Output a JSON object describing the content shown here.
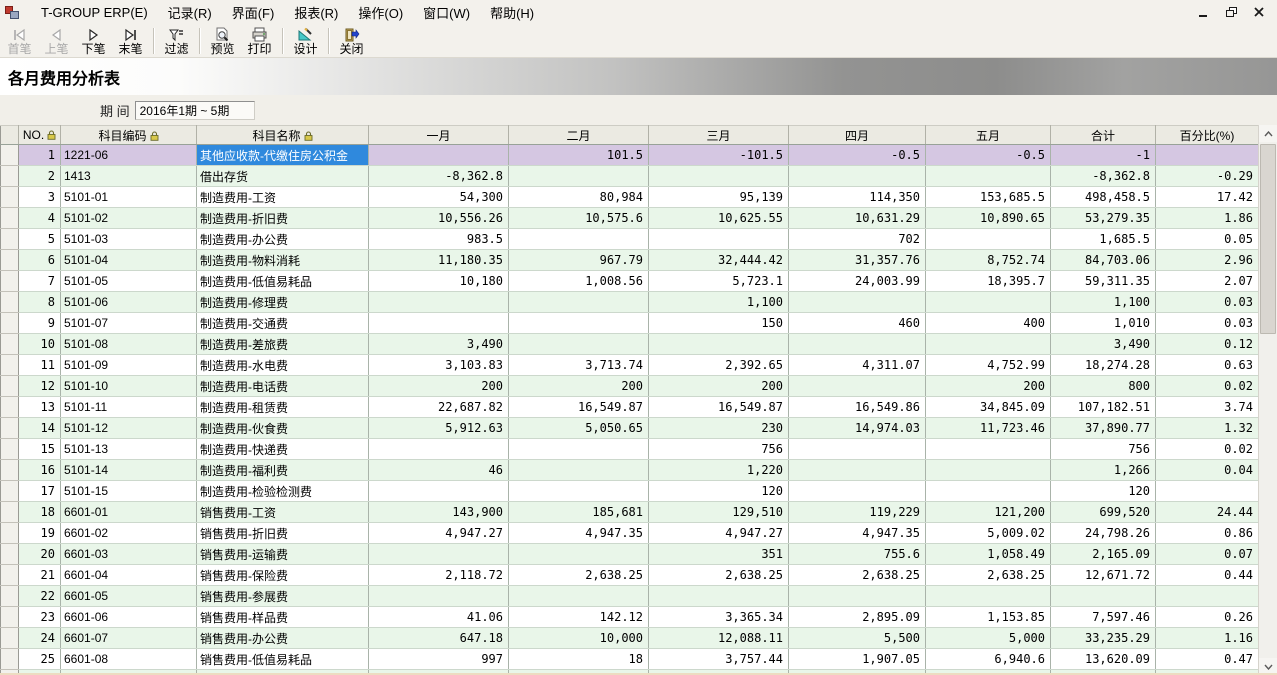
{
  "menubar": {
    "items": [
      "T-GROUP ERP(E)",
      "记录(R)",
      "界面(F)",
      "报表(R)",
      "操作(O)",
      "窗口(W)",
      "帮助(H)"
    ]
  },
  "toolbar": {
    "buttons": [
      {
        "label": "首笔",
        "icon": "first-record-icon",
        "enabled": false
      },
      {
        "label": "上笔",
        "icon": "prev-record-icon",
        "enabled": false
      },
      {
        "label": "下笔",
        "icon": "next-record-icon",
        "enabled": true
      },
      {
        "label": "末笔",
        "icon": "last-record-icon",
        "enabled": true
      },
      {
        "label": "过滤",
        "icon": "filter-icon",
        "enabled": true
      },
      {
        "label": "预览",
        "icon": "preview-icon",
        "enabled": true
      },
      {
        "label": "打印",
        "icon": "print-icon",
        "enabled": true
      },
      {
        "label": "设计",
        "icon": "design-icon",
        "enabled": true
      },
      {
        "label": "关闭",
        "icon": "close-exit-icon",
        "enabled": true
      }
    ]
  },
  "report": {
    "title": "各月费用分析表",
    "period_label": "期 间",
    "period_value": "2016年1期 ~ 5期"
  },
  "colors": {
    "selected_row_bg": "#d5c7e2",
    "selected_cell_bg": "#2f89dd",
    "even_row_bg": "#e9f6e9",
    "header_bg": "#ebeae2"
  },
  "table": {
    "columns": [
      {
        "label": "NO.",
        "locked": true
      },
      {
        "label": "科目编码",
        "locked": true
      },
      {
        "label": "科目名称",
        "locked": true
      },
      {
        "label": "一月",
        "locked": false
      },
      {
        "label": "二月",
        "locked": false
      },
      {
        "label": "三月",
        "locked": false
      },
      {
        "label": "四月",
        "locked": false
      },
      {
        "label": "五月",
        "locked": false
      },
      {
        "label": "合计",
        "locked": false
      },
      {
        "label": "百分比(%)",
        "locked": false
      }
    ],
    "rows": [
      {
        "no": 1,
        "code": "1221-06",
        "name": "其他应收款-代缴住房公积金",
        "values": [
          "",
          "101.5",
          "-101.5",
          "-0.5",
          "-0.5",
          "-1",
          ""
        ],
        "selected": true,
        "selected_cell": "name"
      },
      {
        "no": 2,
        "code": "1413",
        "name": "借出存货",
        "values": [
          "-8,362.8",
          "",
          "",
          "",
          "",
          "-8,362.8",
          "-0.29"
        ]
      },
      {
        "no": 3,
        "code": "5101-01",
        "name": "制造费用-工资",
        "values": [
          "54,300",
          "80,984",
          "95,139",
          "114,350",
          "153,685.5",
          "498,458.5",
          "17.42"
        ]
      },
      {
        "no": 4,
        "code": "5101-02",
        "name": "制造费用-折旧费",
        "values": [
          "10,556.26",
          "10,575.6",
          "10,625.55",
          "10,631.29",
          "10,890.65",
          "53,279.35",
          "1.86"
        ]
      },
      {
        "no": 5,
        "code": "5101-03",
        "name": "制造费用-办公费",
        "values": [
          "983.5",
          "",
          "",
          "702",
          "",
          "1,685.5",
          "0.05"
        ]
      },
      {
        "no": 6,
        "code": "5101-04",
        "name": "制造费用-物料消耗",
        "values": [
          "11,180.35",
          "967.79",
          "32,444.42",
          "31,357.76",
          "8,752.74",
          "84,703.06",
          "2.96"
        ]
      },
      {
        "no": 7,
        "code": "5101-05",
        "name": "制造费用-低值易耗品",
        "values": [
          "10,180",
          "1,008.56",
          "5,723.1",
          "24,003.99",
          "18,395.7",
          "59,311.35",
          "2.07"
        ]
      },
      {
        "no": 8,
        "code": "5101-06",
        "name": "制造费用-修理费",
        "values": [
          "",
          "",
          "1,100",
          "",
          "",
          "1,100",
          "0.03"
        ]
      },
      {
        "no": 9,
        "code": "5101-07",
        "name": "制造费用-交通费",
        "values": [
          "",
          "",
          "150",
          "460",
          "400",
          "1,010",
          "0.03"
        ]
      },
      {
        "no": 10,
        "code": "5101-08",
        "name": "制造费用-差旅费",
        "values": [
          "3,490",
          "",
          "",
          "",
          "",
          "3,490",
          "0.12"
        ]
      },
      {
        "no": 11,
        "code": "5101-09",
        "name": "制造费用-水电费",
        "values": [
          "3,103.83",
          "3,713.74",
          "2,392.65",
          "4,311.07",
          "4,752.99",
          "18,274.28",
          "0.63"
        ]
      },
      {
        "no": 12,
        "code": "5101-10",
        "name": "制造费用-电话费",
        "values": [
          "200",
          "200",
          "200",
          "",
          "200",
          "800",
          "0.02"
        ]
      },
      {
        "no": 13,
        "code": "5101-11",
        "name": "制造费用-租赁费",
        "values": [
          "22,687.82",
          "16,549.87",
          "16,549.87",
          "16,549.86",
          "34,845.09",
          "107,182.51",
          "3.74"
        ]
      },
      {
        "no": 14,
        "code": "5101-12",
        "name": "制造费用-伙食费",
        "values": [
          "5,912.63",
          "5,050.65",
          "230",
          "14,974.03",
          "11,723.46",
          "37,890.77",
          "1.32"
        ]
      },
      {
        "no": 15,
        "code": "5101-13",
        "name": "制造费用-快递费",
        "values": [
          "",
          "",
          "756",
          "",
          "",
          "756",
          "0.02"
        ]
      },
      {
        "no": 16,
        "code": "5101-14",
        "name": "制造费用-福利费",
        "values": [
          "46",
          "",
          "1,220",
          "",
          "",
          "1,266",
          "0.04"
        ]
      },
      {
        "no": 17,
        "code": "5101-15",
        "name": "制造费用-检验检测费",
        "values": [
          "",
          "",
          "120",
          "",
          "",
          "120",
          ""
        ]
      },
      {
        "no": 18,
        "code": "6601-01",
        "name": "销售费用-工资",
        "values": [
          "143,900",
          "185,681",
          "129,510",
          "119,229",
          "121,200",
          "699,520",
          "24.44"
        ]
      },
      {
        "no": 19,
        "code": "6601-02",
        "name": "销售费用-折旧费",
        "values": [
          "4,947.27",
          "4,947.35",
          "4,947.27",
          "4,947.35",
          "5,009.02",
          "24,798.26",
          "0.86"
        ]
      },
      {
        "no": 20,
        "code": "6601-03",
        "name": "销售费用-运输费",
        "values": [
          "",
          "",
          "351",
          "755.6",
          "1,058.49",
          "2,165.09",
          "0.07"
        ]
      },
      {
        "no": 21,
        "code": "6601-04",
        "name": "销售费用-保险费",
        "values": [
          "2,118.72",
          "2,638.25",
          "2,638.25",
          "2,638.25",
          "2,638.25",
          "12,671.72",
          "0.44"
        ]
      },
      {
        "no": 22,
        "code": "6601-05",
        "name": "销售费用-参展费",
        "values": [
          "",
          "",
          "",
          "",
          "",
          "",
          ""
        ]
      },
      {
        "no": 23,
        "code": "6601-06",
        "name": "销售费用-样品费",
        "values": [
          "41.06",
          "142.12",
          "3,365.34",
          "2,895.09",
          "1,153.85",
          "7,597.46",
          "0.26"
        ]
      },
      {
        "no": 24,
        "code": "6601-07",
        "name": "销售费用-办公费",
        "values": [
          "647.18",
          "10,000",
          "12,088.11",
          "5,500",
          "5,000",
          "33,235.29",
          "1.16"
        ]
      },
      {
        "no": 25,
        "code": "6601-08",
        "name": "销售费用-低值易耗品",
        "values": [
          "997",
          "18",
          "3,757.44",
          "1,907.05",
          "6,940.6",
          "13,620.09",
          "0.47"
        ]
      }
    ]
  }
}
